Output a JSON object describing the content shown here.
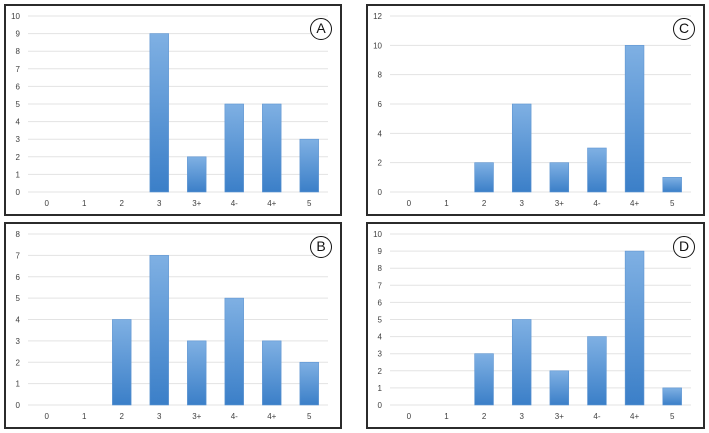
{
  "colors": {
    "bar_top": "#7fb0e3",
    "bar_bottom": "#3b7fc8",
    "grid": "#e3e3e3",
    "border": "#2b2b2b"
  },
  "chart_data": [
    {
      "panel_label": "A",
      "type": "bar",
      "categories": [
        "0",
        "1",
        "2",
        "3",
        "3+",
        "4-",
        "4+",
        "5"
      ],
      "values": [
        0,
        0,
        0,
        9,
        2,
        5,
        5,
        3
      ],
      "ylim": [
        0,
        10
      ],
      "yticks": [
        "0",
        "1",
        "2",
        "3",
        "4",
        "5",
        "6",
        "7",
        "8",
        "9",
        "10"
      ],
      "grid": true
    },
    {
      "panel_label": "C",
      "type": "bar",
      "categories": [
        "0",
        "1",
        "2",
        "3",
        "3+",
        "4-",
        "4+",
        "5"
      ],
      "values": [
        0,
        0,
        2,
        6,
        2,
        3,
        10,
        1
      ],
      "ylim": [
        0,
        12
      ],
      "yticks": [
        "0",
        "2",
        "4",
        "6",
        "8",
        "10",
        "12"
      ],
      "grid": true
    },
    {
      "panel_label": "B",
      "type": "bar",
      "categories": [
        "0",
        "1",
        "2",
        "3",
        "3+",
        "4-",
        "4+",
        "5"
      ],
      "values": [
        0,
        0,
        4,
        7,
        3,
        5,
        3,
        2
      ],
      "ylim": [
        0,
        8
      ],
      "yticks": [
        "0",
        "1",
        "2",
        "3",
        "4",
        "5",
        "6",
        "7",
        "8"
      ],
      "grid": true
    },
    {
      "panel_label": "D",
      "type": "bar",
      "categories": [
        "0",
        "1",
        "2",
        "3",
        "3+",
        "4-",
        "4+",
        "5"
      ],
      "values": [
        0,
        0,
        3,
        5,
        2,
        4,
        9,
        1
      ],
      "ylim": [
        0,
        10
      ],
      "yticks": [
        "0",
        "1",
        "2",
        "3",
        "4",
        "5",
        "6",
        "7",
        "8",
        "9",
        "10"
      ],
      "grid": true
    }
  ]
}
